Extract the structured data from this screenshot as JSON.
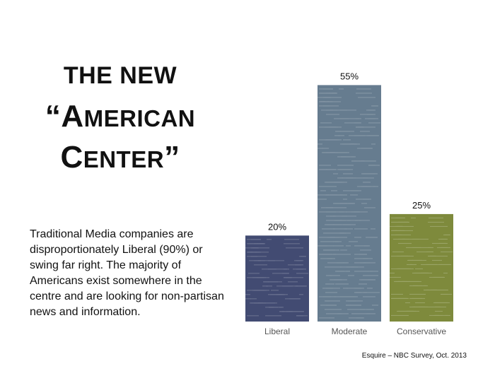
{
  "slide": {
    "title": {
      "line1": "THE NEW",
      "line2": {
        "open_quote": "“",
        "cap": "A",
        "rest": "MERICAN"
      },
      "line3": {
        "cap": "C",
        "rest": "ENTER",
        "close_quote": "”"
      }
    },
    "description": "Traditional Media companies are disproportionately Liberal (90%) or swing far right. The majority of Americans exist somewhere in the centre and are looking for non-partisan news and information.",
    "source": "Esquire – NBC Survey, Oct. 2013",
    "colors": {
      "background": "#ffffff",
      "text": "#111111",
      "axis_label": "#555555",
      "bar_texture": "#ffffff"
    }
  },
  "chart_data": {
    "type": "bar",
    "title": "",
    "xlabel": "",
    "ylabel": "",
    "ylim": [
      0,
      60
    ],
    "grid": false,
    "categories": [
      "Liberal",
      "Moderate",
      "Conservative"
    ],
    "values": [
      20,
      55,
      25
    ],
    "value_labels": [
      "20%",
      "55%",
      "25%"
    ],
    "colors": [
      "#424b72",
      "#667c8f",
      "#7e8a3c"
    ]
  }
}
